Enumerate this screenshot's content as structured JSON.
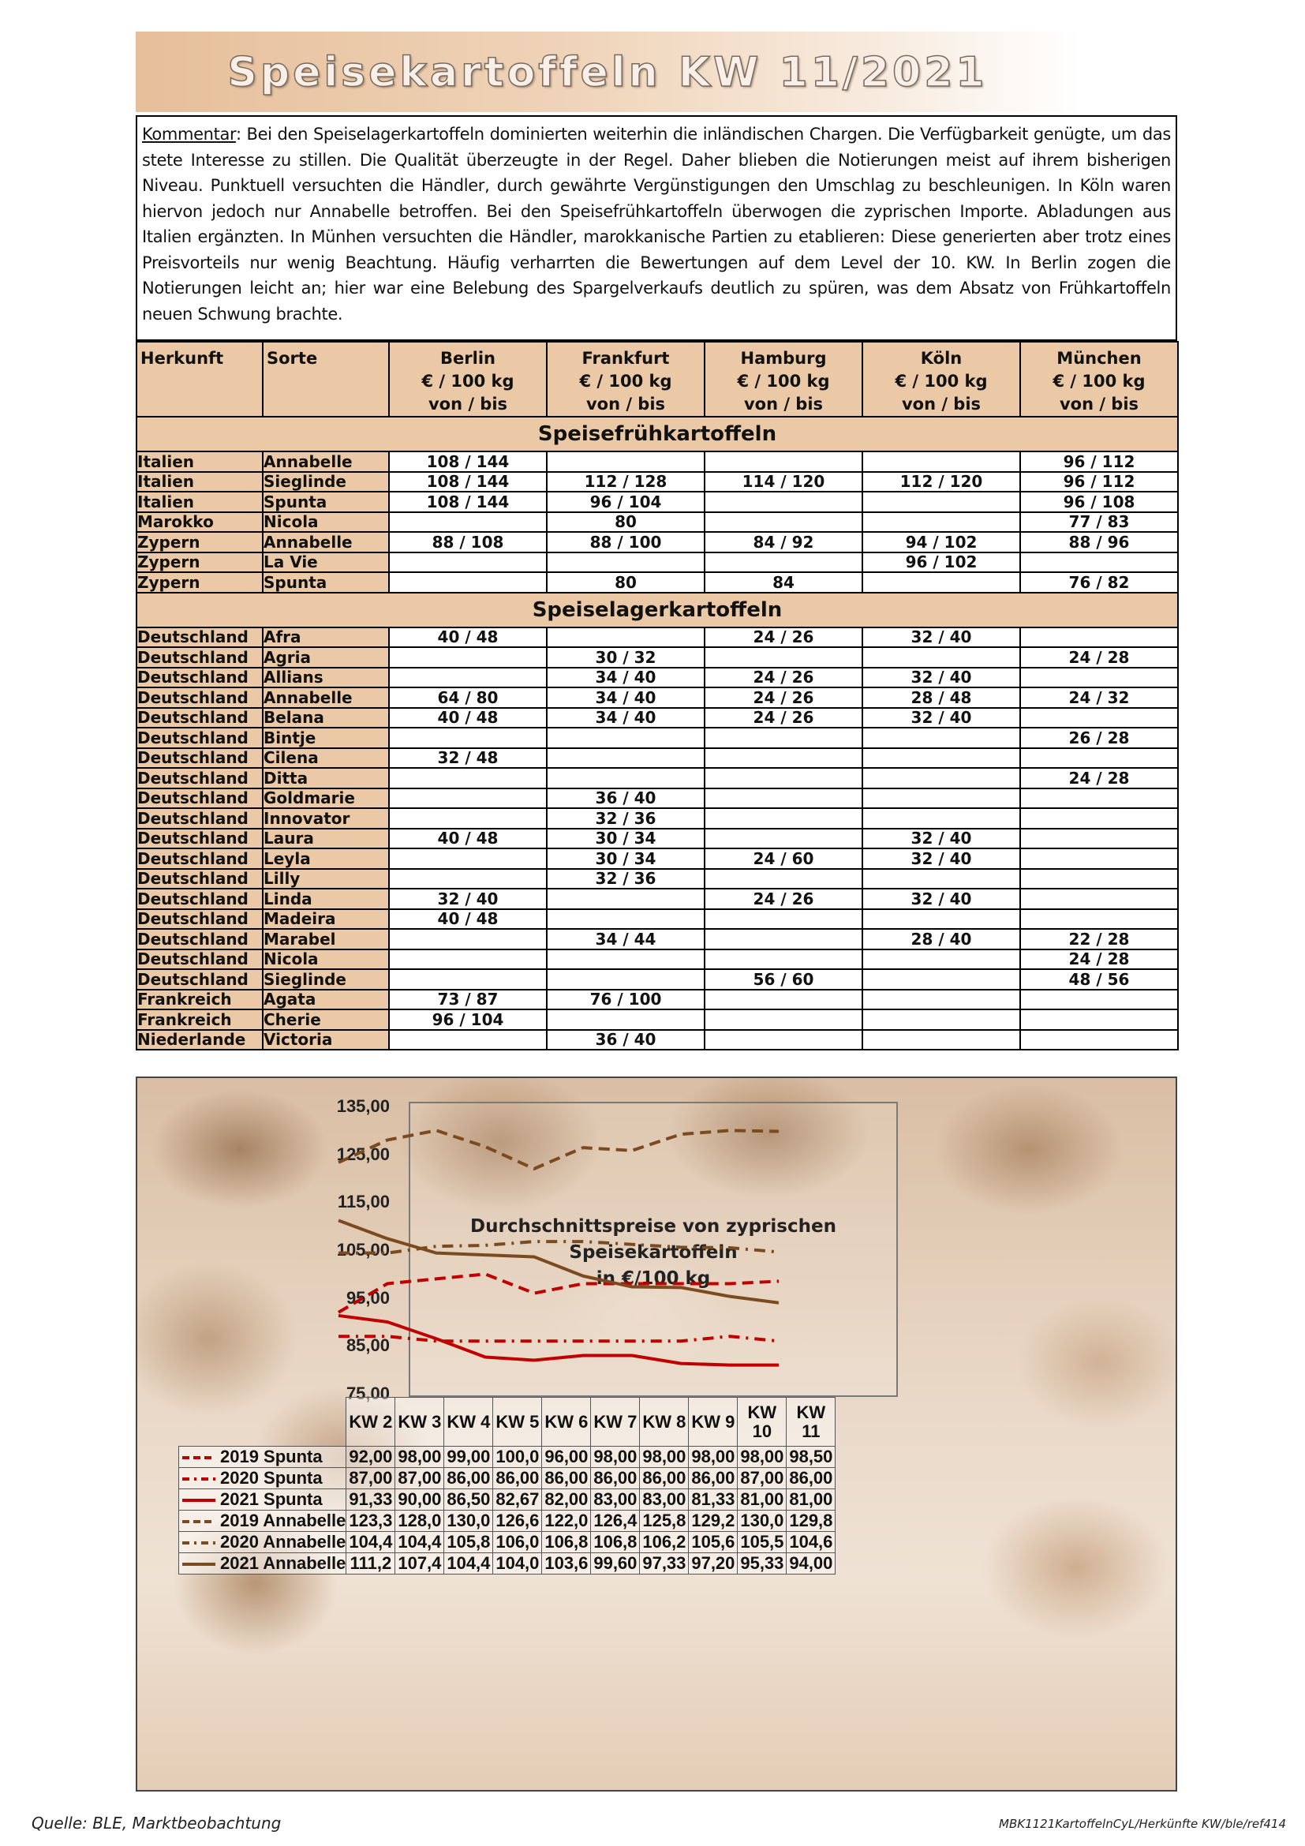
{
  "title": "Speisekartoffeln KW 11/2021",
  "comment": {
    "label": "Kommentar",
    "text": ": Bei den Speiselagerkartoffeln dominierten weiterhin die inländischen Chargen. Die Verfügbarkeit genügte, um das stete Interesse zu stillen. Die Qualität überzeugte in der Regel. Daher blieben die Notierungen meist auf ihrem bisherigen Niveau. Punktuell versuchten die Händler, durch gewährte Vergünstigungen den Umschlag zu beschleunigen. In Köln waren hiervon jedoch nur Annabelle betroffen. Bei den Speisefrühkartoffeln überwogen die zyprischen Importe. Abladungen aus Italien ergänzten. In Münhen versuchten die Händler, marokkanische Partien zu etablieren: Diese generierten aber trotz eines Preisvorteils nur wenig Beachtung. Häufig verharrten die Bewertungen auf dem Level der 10. KW. In Berlin zogen die Notierungen leicht an; hier war eine Belebung des Spargelverkaufs deutlich zu spüren, was dem Absatz von Frühkartoffeln neuen Schwung brachte."
  },
  "table": {
    "headers": {
      "herkunft": "Herkunft",
      "sorte": "Sorte",
      "markets": [
        "Berlin",
        "Frankfurt",
        "Hamburg",
        "Köln",
        "München"
      ],
      "unit": "€ / 100 kg",
      "range": "von  /  bis"
    },
    "sections": [
      {
        "title": "Speisefrühkartoffeln",
        "rows": [
          {
            "origin": "Italien",
            "variety": "Annabelle",
            "values": [
              "108 / 144",
              "",
              "",
              "",
              "96 / 112"
            ]
          },
          {
            "origin": "Italien",
            "variety": "Sieglinde",
            "values": [
              "108 / 144",
              "112 / 128",
              "114 / 120",
              "112 / 120",
              "96 / 112"
            ]
          },
          {
            "origin": "Italien",
            "variety": "Spunta",
            "values": [
              "108 / 144",
              "96 / 104",
              "",
              "",
              "96 / 108"
            ]
          },
          {
            "origin": "Marokko",
            "variety": "Nicola",
            "values": [
              "",
              "80",
              "",
              "",
              "77 / 83"
            ]
          },
          {
            "origin": "Zypern",
            "variety": "Annabelle",
            "values": [
              "88 / 108",
              "88 / 100",
              "84 / 92",
              "94 / 102",
              "88 / 96"
            ]
          },
          {
            "origin": "Zypern",
            "variety": "La Vie",
            "values": [
              "",
              "",
              "",
              "96 / 102",
              ""
            ]
          },
          {
            "origin": "Zypern",
            "variety": "Spunta",
            "values": [
              "",
              "80",
              "84",
              "",
              "76 / 82"
            ]
          }
        ]
      },
      {
        "title": "Speiselagerkartoffeln",
        "rows": [
          {
            "origin": "Deutschland",
            "variety": "Afra",
            "values": [
              "40 / 48",
              "",
              "24 / 26",
              "32 / 40",
              ""
            ]
          },
          {
            "origin": "Deutschland",
            "variety": "Agria",
            "values": [
              "",
              "30 / 32",
              "",
              "",
              "24 / 28"
            ]
          },
          {
            "origin": "Deutschland",
            "variety": "Allians",
            "values": [
              "",
              "34 / 40",
              "24 / 26",
              "32 / 40",
              ""
            ]
          },
          {
            "origin": "Deutschland",
            "variety": "Annabelle",
            "values": [
              "64 / 80",
              "34 / 40",
              "24 / 26",
              "28 / 48",
              "24 / 32"
            ]
          },
          {
            "origin": "Deutschland",
            "variety": "Belana",
            "values": [
              "40 / 48",
              "34 / 40",
              "24 / 26",
              "32 / 40",
              ""
            ]
          },
          {
            "origin": "Deutschland",
            "variety": "Bintje",
            "values": [
              "",
              "",
              "",
              "",
              "26 / 28"
            ]
          },
          {
            "origin": "Deutschland",
            "variety": "Cilena",
            "values": [
              "32 / 48",
              "",
              "",
              "",
              ""
            ]
          },
          {
            "origin": "Deutschland",
            "variety": "Ditta",
            "values": [
              "",
              "",
              "",
              "",
              "24 / 28"
            ]
          },
          {
            "origin": "Deutschland",
            "variety": "Goldmarie",
            "values": [
              "",
              "36 / 40",
              "",
              "",
              ""
            ]
          },
          {
            "origin": "Deutschland",
            "variety": "Innovator",
            "values": [
              "",
              "32 / 36",
              "",
              "",
              ""
            ]
          },
          {
            "origin": "Deutschland",
            "variety": "Laura",
            "values": [
              "40 / 48",
              "30 / 34",
              "",
              "32 / 40",
              ""
            ]
          },
          {
            "origin": "Deutschland",
            "variety": "Leyla",
            "values": [
              "",
              "30 / 34",
              "24 / 60",
              "32 / 40",
              ""
            ]
          },
          {
            "origin": "Deutschland",
            "variety": "Lilly",
            "values": [
              "",
              "32 / 36",
              "",
              "",
              ""
            ]
          },
          {
            "origin": "Deutschland",
            "variety": "Linda",
            "values": [
              "32 / 40",
              "",
              "24 / 26",
              "32 / 40",
              ""
            ]
          },
          {
            "origin": "Deutschland",
            "variety": "Madeira",
            "values": [
              "40 / 48",
              "",
              "",
              "",
              ""
            ]
          },
          {
            "origin": "Deutschland",
            "variety": "Marabel",
            "values": [
              "",
              "34 / 44",
              "",
              "28 / 40",
              "22 / 28"
            ]
          },
          {
            "origin": "Deutschland",
            "variety": "Nicola",
            "values": [
              "",
              "",
              "",
              "",
              "24 / 28"
            ]
          },
          {
            "origin": "Deutschland",
            "variety": "Sieglinde",
            "values": [
              "",
              "",
              "56 / 60",
              "",
              "48 / 56"
            ]
          },
          {
            "origin": "Frankreich",
            "variety": "Agata",
            "values": [
              "73 / 87",
              "76 / 100",
              "",
              "",
              ""
            ]
          },
          {
            "origin": "Frankreich",
            "variety": "Cherie",
            "values": [
              "96 / 104",
              "",
              "",
              "",
              ""
            ]
          },
          {
            "origin": "Niederlande",
            "variety": "Victoria",
            "values": [
              "",
              "36 / 40",
              "",
              "",
              ""
            ]
          }
        ]
      }
    ]
  },
  "chart_data": {
    "type": "line",
    "title": "Durchschnittspreise von zyprischen Speisekartoffeln in €/100 kg",
    "title_lines": [
      "Durchschnittspreise von zyprischen Speisekartoffeln",
      "in €/100 kg"
    ],
    "categories": [
      "KW 2",
      "KW 3",
      "KW 4",
      "KW 5",
      "KW 6",
      "KW 7",
      "KW 8",
      "KW 9",
      "KW 10",
      "KW 11"
    ],
    "ylim": [
      75,
      135
    ],
    "yticks": [
      "135,00",
      "125,00",
      "115,00",
      "105,00",
      "95,00",
      "85,00",
      "75,00"
    ],
    "yticks_values": [
      135,
      125,
      115,
      105,
      95,
      85,
      75
    ],
    "grid": false,
    "legend": "table below plot",
    "series": [
      {
        "name": "2019 Spunta",
        "color": "#c00000",
        "dash": "dash",
        "values": [
          92.0,
          98.0,
          99.0,
          100.0,
          96.0,
          98.0,
          98.0,
          98.0,
          98.0,
          98.5
        ],
        "labels": [
          "92,00",
          "98,00",
          "99,00",
          "100,0",
          "96,00",
          "98,00",
          "98,00",
          "98,00",
          "98,00",
          "98,50"
        ]
      },
      {
        "name": "2020 Spunta",
        "color": "#c00000",
        "dash": "dashdot",
        "values": [
          87.0,
          87.0,
          86.0,
          86.0,
          86.0,
          86.0,
          86.0,
          86.0,
          87.0,
          86.0
        ],
        "labels": [
          "87,00",
          "87,00",
          "86,00",
          "86,00",
          "86,00",
          "86,00",
          "86,00",
          "86,00",
          "87,00",
          "86,00"
        ]
      },
      {
        "name": "2021 Spunta",
        "color": "#c00000",
        "dash": "solid",
        "values": [
          91.33,
          90.0,
          86.5,
          82.67,
          82.0,
          83.0,
          83.0,
          81.33,
          81.0,
          81.0
        ],
        "labels": [
          "91,33",
          "90,00",
          "86,50",
          "82,67",
          "82,00",
          "83,00",
          "83,00",
          "81,33",
          "81,00",
          "81,00"
        ]
      },
      {
        "name": "2019 Annabelle",
        "color": "#7b4a1e",
        "dash": "dash",
        "values": [
          123.3,
          128.0,
          130.0,
          126.6,
          122.0,
          126.4,
          125.8,
          129.2,
          130.0,
          129.8
        ],
        "labels": [
          "123,3",
          "128,0",
          "130,0",
          "126,6",
          "122,0",
          "126,4",
          "125,8",
          "129,2",
          "130,0",
          "129,8"
        ]
      },
      {
        "name": "2020 Annabelle",
        "color": "#7b4a1e",
        "dash": "dashdot",
        "values": [
          104.4,
          104.4,
          105.8,
          106.0,
          106.8,
          106.8,
          106.2,
          105.6,
          105.5,
          104.6
        ],
        "labels": [
          "104,4",
          "104,4",
          "105,8",
          "106,0",
          "106,8",
          "106,8",
          "106,2",
          "105,6",
          "105,5",
          "104,6"
        ]
      },
      {
        "name": "2021 Annabelle",
        "color": "#7b4a1e",
        "dash": "solid",
        "values": [
          111.2,
          107.4,
          104.4,
          104.0,
          103.6,
          99.6,
          97.33,
          97.2,
          95.33,
          94.0
        ],
        "labels": [
          "111,2",
          "107,4",
          "104,4",
          "104,0",
          "103,6",
          "99,60",
          "97,33",
          "97,20",
          "95,33",
          "94,00"
        ]
      }
    ]
  },
  "footer": {
    "source": "Quelle: BLE, Marktbeobachtung",
    "ref": "MBK1121KartoffelnCyL/Herkünfte KW/ble/ref414"
  }
}
